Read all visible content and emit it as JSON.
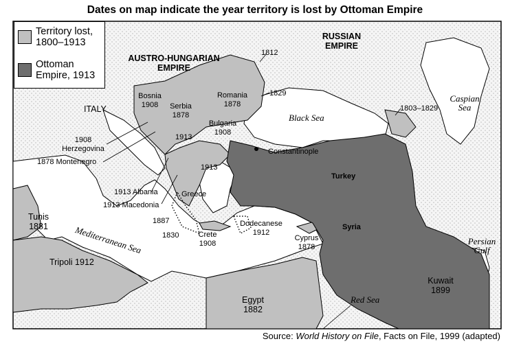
{
  "title": "Dates on map indicate the year territory is lost by Ottoman Empire",
  "legend": [
    {
      "label": "Territory lost, 1800–1913",
      "color": "#c0c0c0"
    },
    {
      "label": "Ottoman Empire, 1913",
      "color": "#6e6e6e"
    }
  ],
  "colors": {
    "territory_lost": "#c0c0c0",
    "ottoman": "#6e6e6e",
    "stipple": "#f4f4f4",
    "sea": "#ffffff"
  },
  "labels": {
    "austro": "AUSTRO-HUNGARIAN EMPIRE",
    "russian": "RUSSIAN EMPIRE",
    "italy": "ITALY",
    "bosnia": "Bosnia\n1908",
    "serbia": "Serbia\n1878",
    "romania": "Romania\n1878",
    "bulgaria": "Bulgaria\n1908",
    "y1812": "1812",
    "y1829": "1829",
    "y1803": "1803–1829",
    "caspian": "Caspian\nSea",
    "black_sea": "Black Sea",
    "constantinople": "Constantinople",
    "turkey": "Turkey",
    "syria": "Syria",
    "herzegovina": "1908\nHerzegovina",
    "montenegro": "1878 Montenegro",
    "y1913a": "1913",
    "y1913b": "1913",
    "albania": "1913 Albania",
    "macedonia": "1913 Macedonia",
    "greece": "Greece",
    "y1887": "1887",
    "y1830": "1830",
    "crete": "Crete\n1908",
    "dodecanese": "Dodecanese\n1912",
    "cyprus": "Cyprus\n1878",
    "tunis": "Tunis\n1881",
    "tripoli": "Tripoli 1912",
    "med_sea": "Mediterranean Sea",
    "egypt": "Egypt\n1882",
    "red_sea": "Red Sea",
    "kuwait": "Kuwait\n1899",
    "persian": "Persian\nGulf"
  },
  "source": {
    "prefix": "Source: ",
    "work": "World History on File",
    "suffix": ", Facts on File, 1999 (adapted)"
  }
}
